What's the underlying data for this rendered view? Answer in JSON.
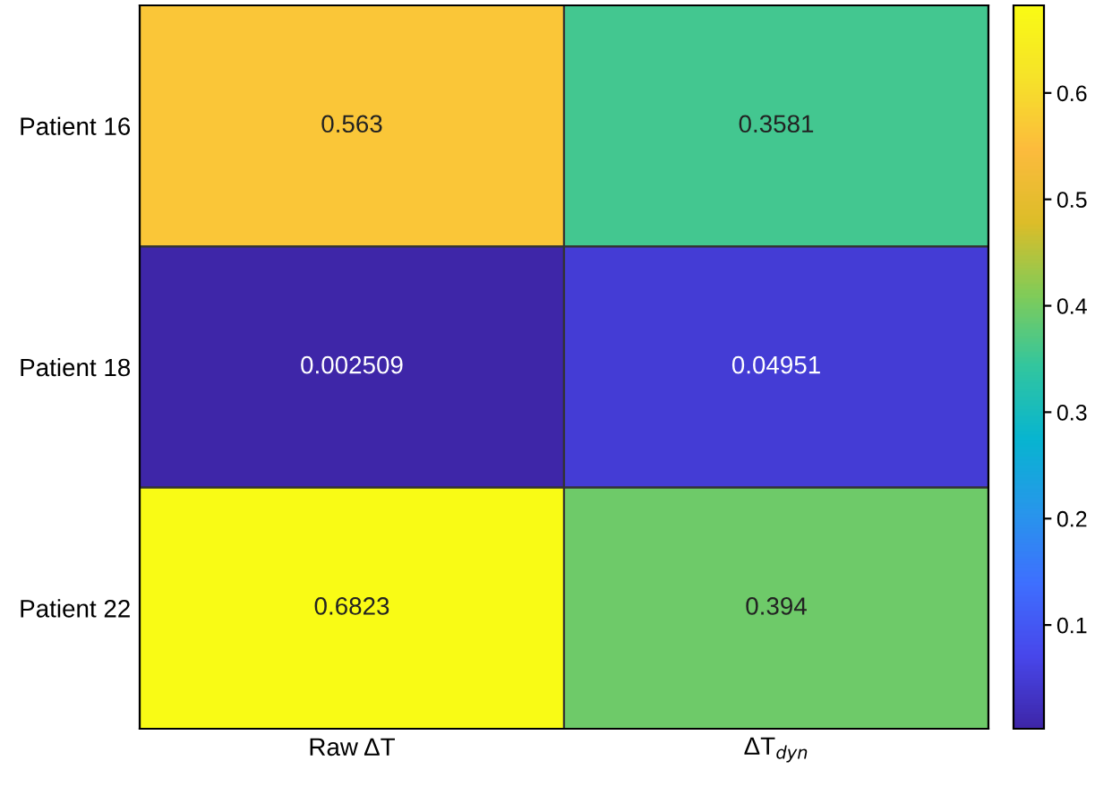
{
  "chart_data": {
    "type": "heatmap",
    "categories": [
      "Raw ΔT",
      "ΔT$_{dyn}$"
    ],
    "y_categories": [
      "Patient 16",
      "Patient 18",
      "Patient 22"
    ],
    "cells": [
      [
        0.563,
        0.3581
      ],
      [
        0.002509,
        0.04951
      ],
      [
        0.6823,
        0.394
      ]
    ],
    "clim": [
      0.002509,
      0.6823
    ],
    "cticks": [
      0.1,
      0.2,
      0.3,
      0.4,
      0.5,
      0.6
    ],
    "data_labels": true
  }
}
